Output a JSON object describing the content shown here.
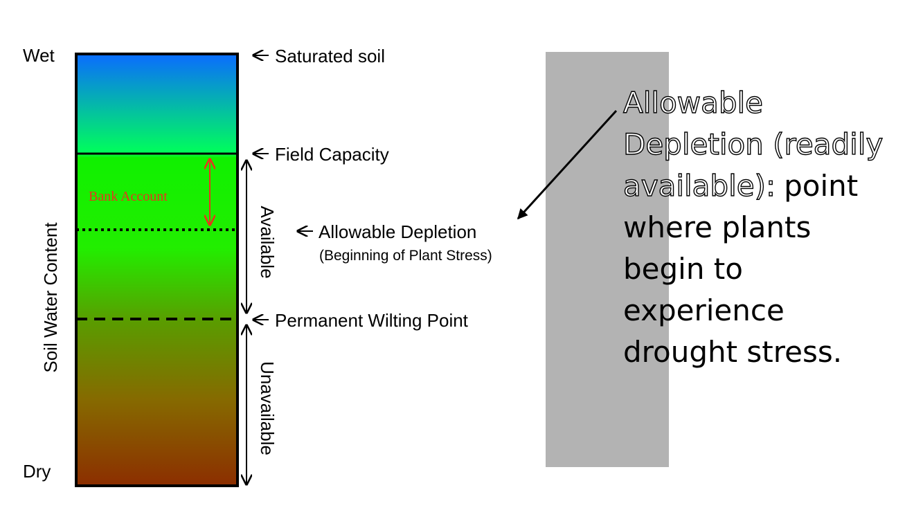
{
  "diagram": {
    "wet": "Wet",
    "dry": "Dry",
    "axis_label": "Soil Water Content",
    "levels": {
      "saturated": "Saturated soil",
      "field_capacity": "Field Capacity",
      "allowable_depletion": "Allowable Depletion",
      "allowable_note": "(Beginning of Plant Stress)",
      "wilting_point": "Permanent Wilting Point"
    },
    "zones": {
      "available": "Available",
      "unavailable": "Unavailable"
    },
    "bank_account": "Bank Account"
  },
  "callout": {
    "term": [
      "Allowable",
      "Depletion (readily",
      "available):"
    ],
    "body": [
      "point",
      "where plants",
      "begin to",
      "experience",
      "drought stress."
    ]
  }
}
